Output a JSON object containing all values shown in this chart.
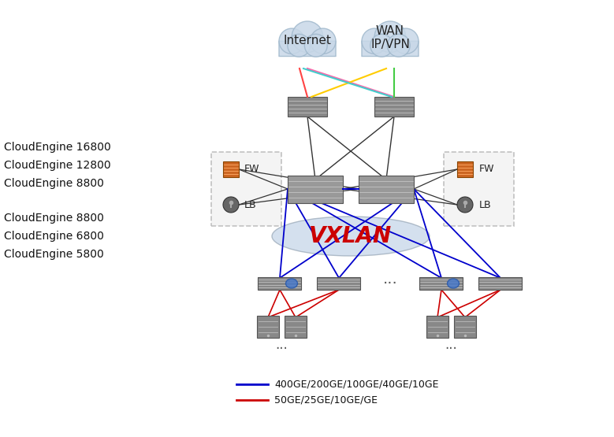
{
  "bg_color": "#ffffff",
  "left_labels_top": [
    "CloudEngine 16800",
    "CloudEngine 12800",
    "CloudEngine 8800"
  ],
  "left_labels_bottom": [
    "CloudEngine 8800",
    "CloudEngine 6800",
    "CloudEngine 5800"
  ],
  "cloud_labels": [
    "Internet",
    "WAN\nIP/VPN"
  ],
  "vxlan_text": "VXLAN",
  "fw_label": "FW",
  "lb_label": "LB",
  "dots": "···",
  "legend_blue_label": "400GE/200GE/100GE/40GE/10GE",
  "legend_red_label": "50GE/25GE/10GE/GE",
  "blue_color": "#0000cc",
  "red_color": "#cc0000",
  "vxlan_color": "#cc0000",
  "cloud_fill": "#c8d8e8",
  "cloud_edge": "#a0b8cc",
  "switch_color": "#888888",
  "fw_color": "#cc6622",
  "dashed_box_color": "#888888"
}
